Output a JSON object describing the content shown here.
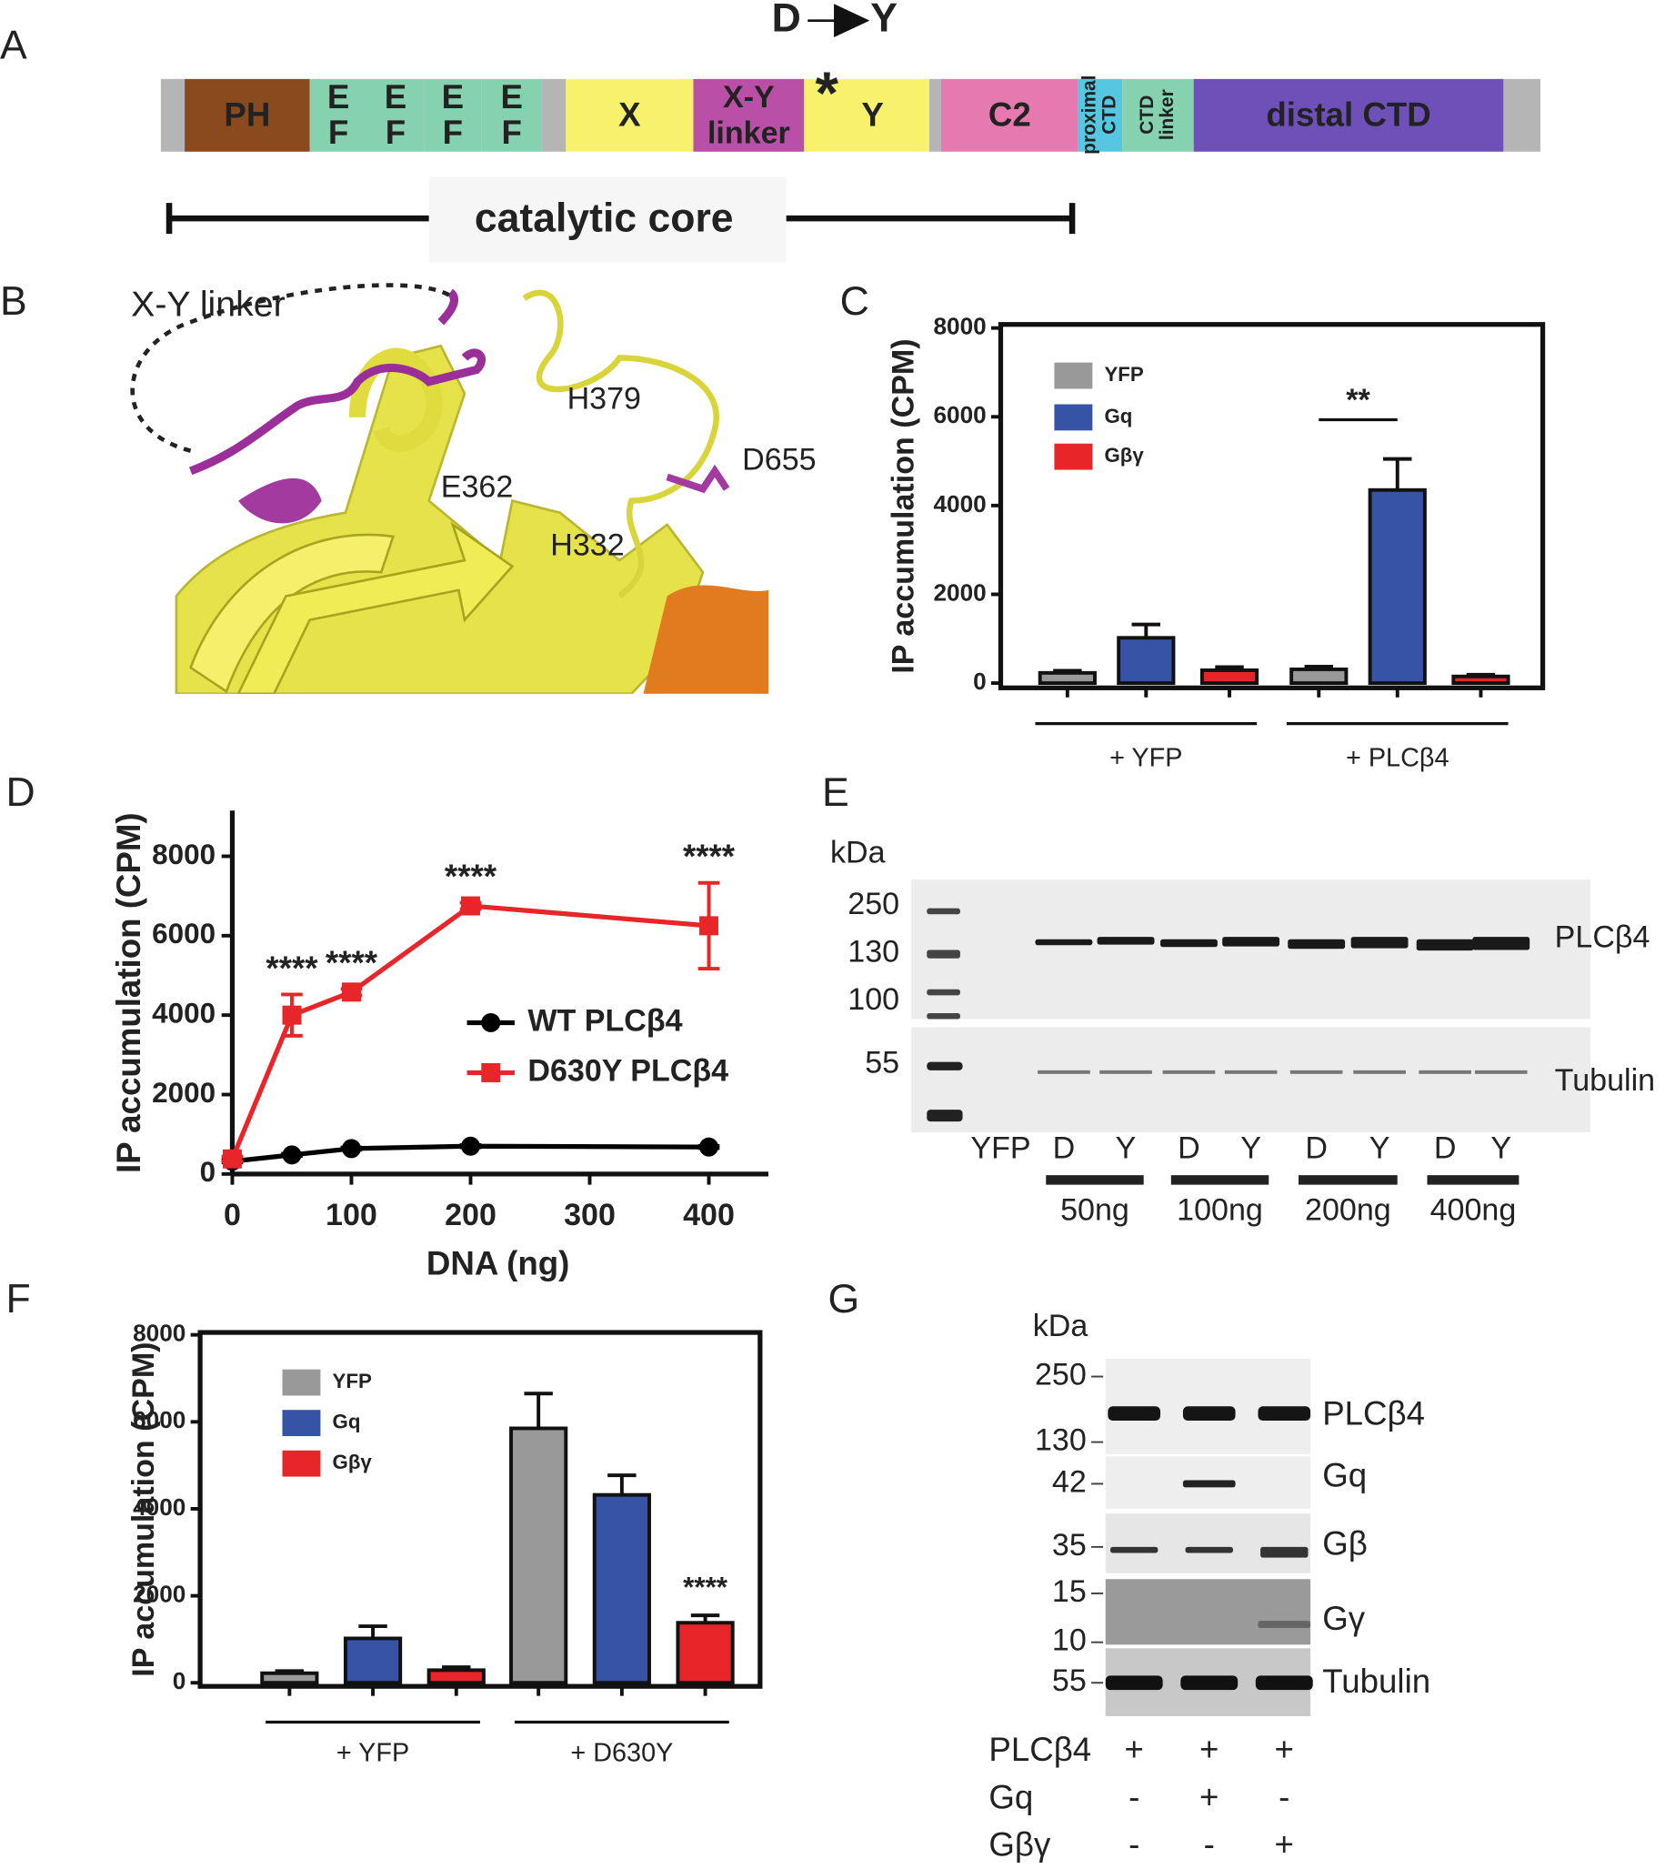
{
  "panel_labels": [
    "A",
    "B",
    "C",
    "D",
    "E",
    "F",
    "G"
  ],
  "domain_map": {
    "mutation_from": "D",
    "mutation_to": "Y",
    "mutation_marker": "*",
    "domains": [
      {
        "lines": [
          "PH"
        ],
        "color": "#8b4a1e"
      },
      {
        "lines": [
          "E",
          "F"
        ],
        "color": "#86d1b0"
      },
      {
        "lines": [
          "E",
          "F"
        ],
        "color": "#86d1b0"
      },
      {
        "lines": [
          "E",
          "F"
        ],
        "color": "#86d1b0"
      },
      {
        "lines": [
          "E",
          "F"
        ],
        "color": "#86d1b0"
      },
      {
        "lines": [
          "X"
        ],
        "color": "#f7f16c"
      },
      {
        "lines": [
          "X-Y",
          "linker"
        ],
        "color": "#b94fa6"
      },
      {
        "lines": [
          "Y"
        ],
        "color": "#f7f16c"
      },
      {
        "lines": [
          "C2"
        ],
        "color": "#e67ab0"
      },
      {
        "lines": [
          "proximal",
          "CTD"
        ],
        "color": "#56c7e0"
      },
      {
        "lines": [
          "CTD",
          "linker"
        ],
        "color": "#86d1b0"
      },
      {
        "lines": [
          "distal CTD"
        ],
        "color": "#6f4fb8"
      }
    ],
    "core_label": "catalytic core"
  },
  "structure": {
    "labels": [
      "X-Y linker",
      "H379",
      "D655",
      "E362",
      "H332"
    ]
  },
  "chart_data": [
    {
      "type": "bar",
      "ylabel": "IP accumulation (CPM)",
      "categories": [
        "+ YFP",
        "+ PLCβ4"
      ],
      "series": [
        {
          "name": "YFP",
          "color": "#999999",
          "values": [
            230,
            310
          ],
          "errors": [
            50,
            60
          ]
        },
        {
          "name": "Gq",
          "color": "#3653a6",
          "values": [
            1020,
            4350
          ],
          "errors": [
            300,
            700
          ]
        },
        {
          "name": "Gβγ",
          "color": "#e8262a",
          "values": [
            290,
            150
          ],
          "errors": [
            70,
            40
          ]
        }
      ],
      "ylim": [
        0,
        8000
      ],
      "yticks": [
        0,
        2000,
        4000,
        6000,
        8000
      ],
      "annotations": [
        "**"
      ]
    },
    {
      "type": "line",
      "xlabel": "DNA (ng)",
      "ylabel": "IP accumulation (CPM)",
      "x": [
        0,
        50,
        100,
        200,
        400
      ],
      "series": [
        {
          "name": "WT PLCβ4",
          "color": "#000000",
          "marker": "circle",
          "values": [
            320,
            480,
            640,
            700,
            680
          ],
          "errors": [
            30,
            30,
            30,
            30,
            30
          ]
        },
        {
          "name": "D630Y PLCβ4",
          "color": "#e8262a",
          "marker": "square",
          "values": [
            380,
            4000,
            4580,
            6750,
            6250
          ],
          "errors": [
            60,
            520,
            80,
            80,
            1080
          ]
        }
      ],
      "xlim": [
        0,
        450
      ],
      "xticks": [
        0,
        100,
        200,
        300,
        400
      ],
      "ylim": [
        0,
        9000
      ],
      "yticks": [
        0,
        2000,
        4000,
        6000,
        8000
      ],
      "annotations": [
        "****",
        "****",
        "****",
        "****"
      ]
    },
    {
      "type": "bar",
      "ylabel": "IP accumulation (CPM)",
      "categories": [
        "+ YFP",
        "+ D630Y"
      ],
      "series": [
        {
          "name": "YFP",
          "color": "#999999",
          "values": [
            220,
            5850
          ],
          "errors": [
            50,
            800
          ]
        },
        {
          "name": "Gq",
          "color": "#3653a6",
          "values": [
            1020,
            4320
          ],
          "errors": [
            280,
            450
          ]
        },
        {
          "name": "Gβγ",
          "color": "#e8262a",
          "values": [
            290,
            1380
          ],
          "errors": [
            70,
            170
          ]
        }
      ],
      "ylim": [
        0,
        8000
      ],
      "yticks": [
        0,
        2000,
        4000,
        6000,
        8000
      ],
      "annotations": [
        "****"
      ]
    }
  ],
  "blot_e": {
    "unit": "kDa",
    "markers": [
      250,
      130,
      100,
      55
    ],
    "bands": [
      "PLCβ4",
      "Tubulin"
    ],
    "lanes": [
      "YFP",
      "D",
      "Y",
      "D",
      "Y",
      "D",
      "Y",
      "D",
      "Y"
    ],
    "amounts": [
      "50ng",
      "100ng",
      "200ng",
      "400ng"
    ]
  },
  "blot_g": {
    "unit": "kDa",
    "markers": [
      250,
      130,
      42,
      35,
      15,
      10,
      55
    ],
    "bands": [
      "PLCβ4",
      "Gq",
      "Gβ",
      "Gγ",
      "Tubulin"
    ],
    "conditions": [
      {
        "name": "PLCβ4",
        "signs": [
          "+",
          "+",
          "+"
        ]
      },
      {
        "name": "Gq",
        "signs": [
          "-",
          "+",
          "-"
        ]
      },
      {
        "name": "Gβγ",
        "signs": [
          "-",
          "-",
          "+"
        ]
      }
    ]
  }
}
